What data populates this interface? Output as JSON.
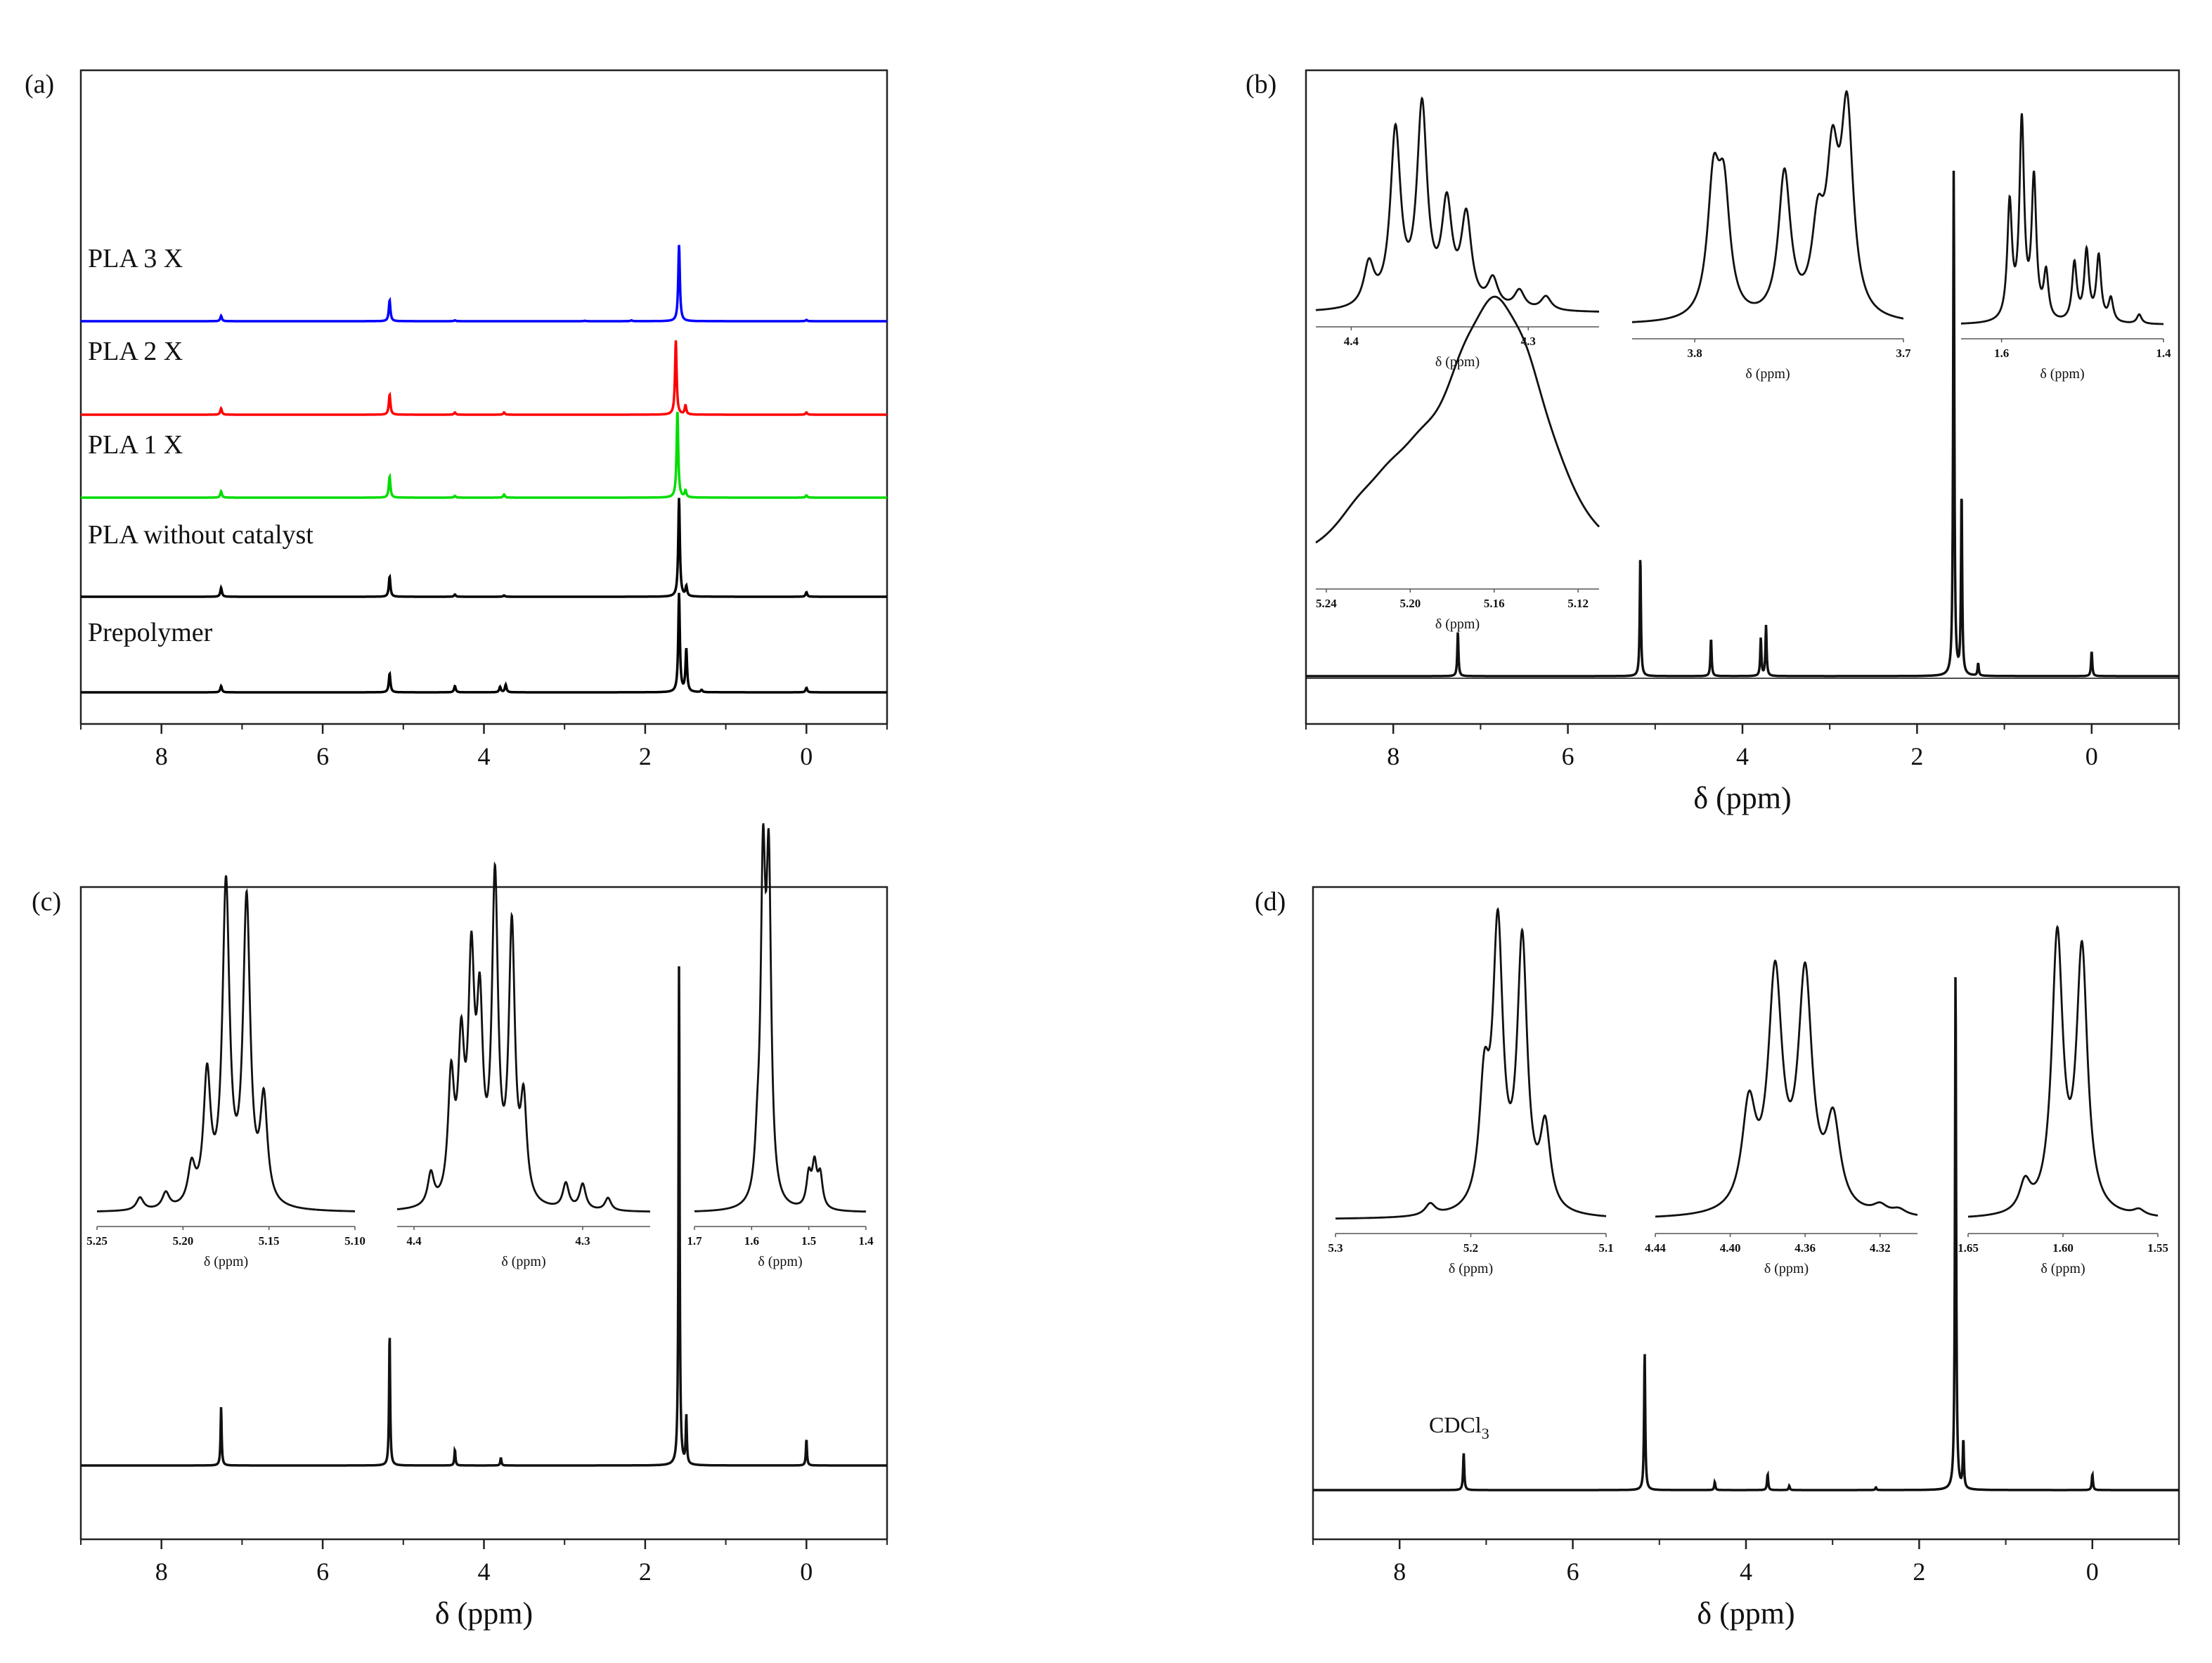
{
  "chart_data": [
    {
      "id": "a",
      "panel_label": "(a)",
      "type": "line",
      "xlim": [
        9,
        -1
      ],
      "x_ticks": [
        8,
        6,
        4,
        2,
        0
      ],
      "xlabel": "",
      "series": [
        {
          "name": "PLA 3 X",
          "color": "#0000ff",
          "peaks": [
            [
              7.26,
              0.12
            ],
            [
              5.17,
              0.47
            ],
            [
              4.36,
              0.02
            ],
            [
              2.75,
              0.01
            ],
            [
              2.17,
              0.02
            ],
            [
              1.58,
              1.7
            ],
            [
              0.0,
              0.03
            ]
          ]
        },
        {
          "name": "PLA 2 X",
          "color": "#ff0000",
          "peaks": [
            [
              7.26,
              0.14
            ],
            [
              5.17,
              0.45
            ],
            [
              4.36,
              0.05
            ],
            [
              3.75,
              0.05
            ],
            [
              1.62,
              1.65
            ],
            [
              1.5,
              0.2
            ],
            [
              0.0,
              0.05
            ]
          ]
        },
        {
          "name": "PLA 1 X",
          "color": "#00dd00",
          "peaks": [
            [
              7.26,
              0.14
            ],
            [
              5.17,
              0.48
            ],
            [
              4.36,
              0.04
            ],
            [
              3.75,
              0.07
            ],
            [
              1.6,
              1.95
            ],
            [
              1.5,
              0.15
            ],
            [
              0.0,
              0.05
            ]
          ]
        },
        {
          "name": "PLA without catalyst",
          "color": "#000000",
          "peaks": [
            [
              7.26,
              0.2
            ],
            [
              5.17,
              0.45
            ],
            [
              4.36,
              0.05
            ],
            [
              3.75,
              0.03
            ],
            [
              1.58,
              2.2
            ],
            [
              1.49,
              0.22
            ],
            [
              0.0,
              0.1
            ]
          ]
        },
        {
          "name": "Prepolymer",
          "color": "#000000",
          "peaks": [
            [
              7.26,
              0.14
            ],
            [
              5.17,
              0.42
            ],
            [
              4.36,
              0.14
            ],
            [
              3.8,
              0.12
            ],
            [
              3.73,
              0.17
            ],
            [
              1.58,
              2.2
            ],
            [
              1.49,
              0.95
            ],
            [
              1.3,
              0.05
            ],
            [
              0.0,
              0.1
            ]
          ]
        }
      ]
    },
    {
      "id": "b",
      "panel_label": "(b)",
      "type": "line",
      "xlim": [
        9,
        -1
      ],
      "x_ticks": [
        8,
        6,
        4,
        2,
        0
      ],
      "xlabel": "δ (ppm)",
      "main_peaks": [
        [
          7.26,
          0.07
        ],
        [
          5.17,
          0.19
        ],
        [
          4.36,
          0.06
        ],
        [
          3.79,
          0.06
        ],
        [
          3.73,
          0.08
        ],
        [
          1.58,
          0.8
        ],
        [
          1.49,
          0.29
        ],
        [
          1.3,
          0.02
        ],
        [
          0.0,
          0.04
        ]
      ],
      "insets": [
        {
          "xlabel": "δ (ppm)",
          "xlim": [
            4.42,
            4.26
          ],
          "x_ticks": [
            "4.4",
            "4.3"
          ],
          "peaks": [
            [
              4.39,
              0.18
            ],
            [
              4.375,
              0.75
            ],
            [
              4.36,
              0.85
            ],
            [
              4.346,
              0.42
            ],
            [
              4.335,
              0.38
            ],
            [
              4.32,
              0.12
            ],
            [
              4.305,
              0.08
            ],
            [
              4.29,
              0.06
            ]
          ]
        },
        {
          "xlabel": "δ (ppm)",
          "xlim": [
            3.83,
            3.7
          ],
          "x_ticks": [
            "3.8",
            "3.7"
          ],
          "peaks": [
            [
              3.791,
              0.55
            ],
            [
              3.786,
              0.5
            ],
            [
              3.757,
              0.62
            ],
            [
              3.741,
              0.35
            ],
            [
              3.734,
              0.6
            ],
            [
              3.727,
              0.85
            ]
          ]
        },
        {
          "xlabel": "δ (ppm)",
          "xlim": [
            1.65,
            1.4
          ],
          "x_ticks": [
            "1.6",
            "1.4"
          ],
          "peaks": [
            [
              1.59,
              0.5
            ],
            [
              1.575,
              0.85
            ],
            [
              1.56,
              0.6
            ],
            [
              1.545,
              0.2
            ],
            [
              1.51,
              0.25
            ],
            [
              1.495,
              0.3
            ],
            [
              1.48,
              0.28
            ],
            [
              1.465,
              0.1
            ],
            [
              1.43,
              0.04
            ]
          ]
        }
      ],
      "inset_lower": {
        "xlabel": "δ (ppm)",
        "xlim": [
          5.245,
          5.11
        ],
        "x_ticks": [
          "5.24",
          "5.20",
          "5.16",
          "5.12"
        ],
        "peaks": [
          [
            5.225,
            0.1
          ],
          [
            5.21,
            0.14
          ],
          [
            5.195,
            0.18
          ],
          [
            5.175,
            0.35
          ],
          [
            5.16,
            0.55
          ],
          [
            5.145,
            0.4
          ],
          [
            5.13,
            0.1
          ]
        ]
      }
    },
    {
      "id": "c",
      "panel_label": "(c)",
      "type": "line",
      "xlim": [
        9,
        -1
      ],
      "x_ticks": [
        8,
        6,
        4,
        2,
        0
      ],
      "xlabel": "δ (ppm)",
      "main_peaks": [
        [
          7.26,
          0.11
        ],
        [
          5.17,
          0.25
        ],
        [
          4.36,
          0.03
        ],
        [
          3.79,
          0.015
        ],
        [
          1.58,
          0.94
        ],
        [
          1.49,
          0.09
        ],
        [
          0.0,
          0.05
        ]
      ],
      "insets": [
        {
          "xlabel": "δ (ppm)",
          "xlim": [
            5.25,
            5.1
          ],
          "x_ticks": [
            "5.25",
            "5.20",
            "5.15",
            "5.10"
          ],
          "peaks": [
            [
              5.225,
              0.04
            ],
            [
              5.21,
              0.05
            ],
            [
              5.195,
              0.12
            ],
            [
              5.186,
              0.4
            ],
            [
              5.175,
              1.0
            ],
            [
              5.163,
              0.95
            ],
            [
              5.153,
              0.32
            ]
          ]
        },
        {
          "xlabel": "δ (ppm)",
          "xlim": [
            4.41,
            4.26
          ],
          "x_ticks": [
            "4.4",
            "4.3"
          ],
          "peaks": [
            [
              4.39,
              0.1
            ],
            [
              4.378,
              0.38
            ],
            [
              4.372,
              0.45
            ],
            [
              4.366,
              0.7
            ],
            [
              4.361,
              0.55
            ],
            [
              4.352,
              1.0
            ],
            [
              4.342,
              0.85
            ],
            [
              4.335,
              0.3
            ],
            [
              4.31,
              0.08
            ],
            [
              4.3,
              0.08
            ],
            [
              4.285,
              0.04
            ]
          ]
        },
        {
          "xlabel": "δ (ppm)",
          "xlim": [
            1.7,
            1.4
          ],
          "x_ticks": [
            "1.7",
            "1.6",
            "1.5",
            "1.4"
          ],
          "peaks": [
            [
              1.59,
              0.12
            ],
            [
              1.58,
              1.0
            ],
            [
              1.57,
              1.0
            ],
            [
              1.5,
              0.1
            ],
            [
              1.49,
              0.13
            ],
            [
              1.48,
              0.1
            ]
          ]
        }
      ]
    },
    {
      "id": "d",
      "panel_label": "(d)",
      "type": "line",
      "xlim": [
        9,
        -1
      ],
      "x_ticks": [
        8,
        6,
        4,
        2,
        0
      ],
      "xlabel": "δ (ppm)",
      "annotation": {
        "text": "CDCl",
        "subscript": "3"
      },
      "main_peaks": [
        [
          7.26,
          0.07
        ],
        [
          5.17,
          0.26
        ],
        [
          4.36,
          0.015
        ],
        [
          3.75,
          0.03
        ],
        [
          3.5,
          0.008
        ],
        [
          2.5,
          0.005
        ],
        [
          1.58,
          0.98
        ],
        [
          1.49,
          0.09
        ],
        [
          0.0,
          0.03
        ]
      ],
      "insets": [
        {
          "xlabel": "δ (ppm)",
          "xlim": [
            5.3,
            5.1
          ],
          "x_ticks": [
            "5.3",
            "5.2",
            "5.1"
          ],
          "peaks": [
            [
              5.23,
              0.04
            ],
            [
              5.19,
              0.4
            ],
            [
              5.18,
              0.95
            ],
            [
              5.162,
              0.92
            ],
            [
              5.145,
              0.28
            ]
          ]
        },
        {
          "xlabel": "δ (ppm)",
          "xlim": [
            4.44,
            4.3
          ],
          "x_ticks": [
            "4.44",
            "4.40",
            "4.36",
            "4.32"
          ],
          "peaks": [
            [
              4.39,
              0.35
            ],
            [
              4.376,
              0.8
            ],
            [
              4.36,
              0.8
            ],
            [
              4.345,
              0.3
            ],
            [
              4.32,
              0.03
            ],
            [
              4.31,
              0.02
            ]
          ]
        },
        {
          "xlabel": "δ (ppm)",
          "xlim": [
            1.65,
            1.55
          ],
          "x_ticks": [
            "1.65",
            "1.60",
            "1.55"
          ],
          "peaks": [
            [
              1.62,
              0.1
            ],
            [
              1.603,
              0.95
            ],
            [
              1.59,
              0.9
            ],
            [
              1.56,
              0.02
            ]
          ]
        }
      ]
    }
  ]
}
